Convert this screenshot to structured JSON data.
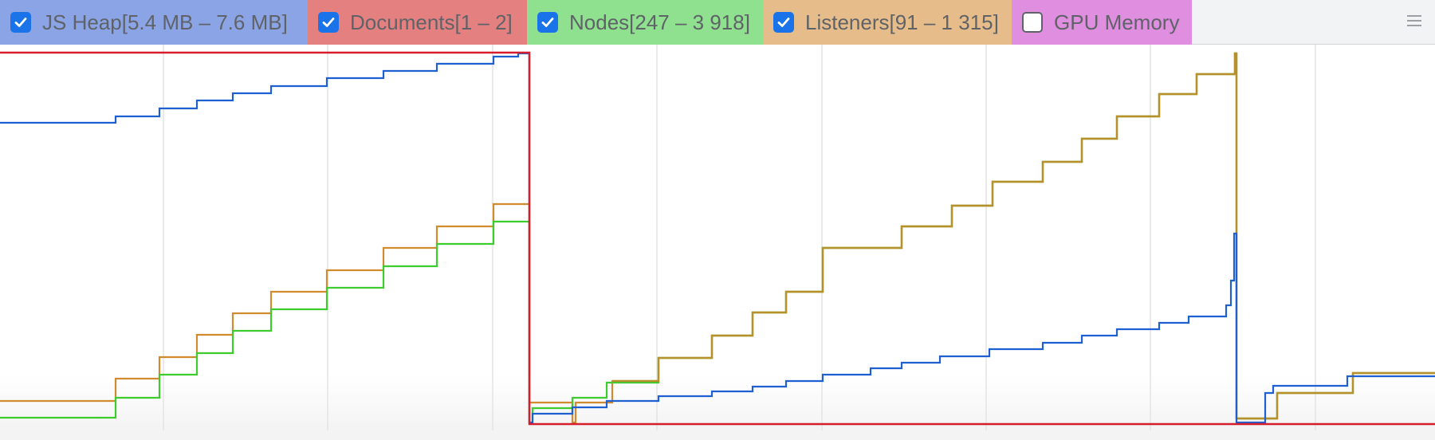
{
  "counters": [
    {
      "id": "js-heap",
      "label": "JS Heap[5.4 MB – 7.6 MB]",
      "checked": true,
      "color": "#8aa4e6",
      "width": 386
    },
    {
      "id": "documents",
      "label": "Documents[1 – 2]",
      "checked": true,
      "color": "#e48080",
      "width": 275
    },
    {
      "id": "nodes",
      "label": "Nodes[247 – 3 918]",
      "checked": true,
      "color": "#8fe08f",
      "width": 296
    },
    {
      "id": "listeners",
      "label": "Listeners[91 – 1 315]",
      "checked": true,
      "color": "#e6bd8a",
      "width": 312
    },
    {
      "id": "gpu-memory",
      "label": "GPU Memory",
      "checked": false,
      "color": "#e08ee0",
      "width": 226
    }
  ],
  "chart_data": {
    "type": "line",
    "series": [
      {
        "name": "JS Heap",
        "color": "#1e5fd1"
      },
      {
        "name": "Documents",
        "color": "#d51e2b"
      },
      {
        "name": "Nodes",
        "color": "#3ccc2e"
      },
      {
        "name": "Listeners",
        "color": "#d18a2e"
      }
    ],
    "grid": true
  }
}
